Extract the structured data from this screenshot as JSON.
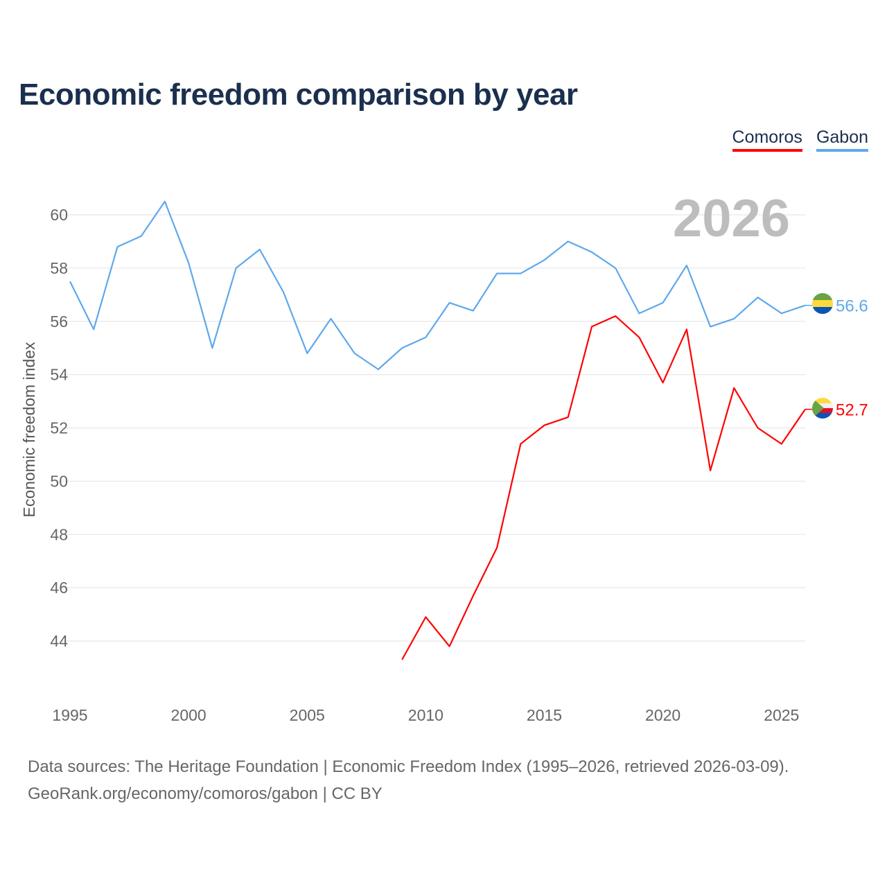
{
  "title": "Economic freedom comparison by year",
  "legend": [
    {
      "name": "Comoros",
      "color": "#ff0000"
    },
    {
      "name": "Gabon",
      "color": "#5ea8ec"
    }
  ],
  "footer": {
    "line1": "Data sources: The Heritage Foundation | Economic Freedom Index (1995–2026, retrieved 2026-03-09).",
    "line2": "GeoRank.org/economy/comoros/gabon | CC BY"
  },
  "chart_data": {
    "type": "line",
    "title": "Economic freedom comparison by year",
    "ylabel": "Economic freedom index",
    "xlabel": "",
    "current_year_label": "2026",
    "xlim": [
      1995,
      2026
    ],
    "ylim": [
      42,
      61
    ],
    "x_ticks": [
      1995,
      2000,
      2005,
      2010,
      2015,
      2020,
      2025
    ],
    "y_ticks": [
      44,
      46,
      48,
      50,
      52,
      54,
      56,
      58,
      60
    ],
    "grid": true,
    "legend_position": "top-right",
    "series": [
      {
        "name": "Gabon",
        "color": "#5ea8ec",
        "end_label": "56.6",
        "flag": "gabon-flag",
        "x": [
          1995,
          1996,
          1997,
          1998,
          1999,
          2000,
          2001,
          2002,
          2003,
          2004,
          2005,
          2006,
          2007,
          2008,
          2009,
          2010,
          2011,
          2012,
          2013,
          2014,
          2015,
          2016,
          2017,
          2018,
          2019,
          2020,
          2021,
          2022,
          2023,
          2024,
          2025,
          2026
        ],
        "values": [
          57.5,
          55.7,
          58.8,
          59.2,
          60.5,
          58.2,
          55.0,
          58.0,
          58.7,
          57.1,
          54.8,
          56.1,
          54.8,
          54.2,
          55.0,
          55.4,
          56.7,
          56.4,
          57.8,
          57.8,
          58.3,
          59.0,
          58.6,
          58.0,
          56.3,
          56.7,
          58.1,
          55.8,
          56.1,
          56.9,
          56.3,
          56.6
        ]
      },
      {
        "name": "Comoros",
        "color": "#ff0000",
        "end_label": "52.7",
        "flag": "comoros-flag",
        "x": [
          2009,
          2010,
          2011,
          2012,
          2013,
          2014,
          2015,
          2016,
          2017,
          2018,
          2019,
          2020,
          2021,
          2022,
          2023,
          2024,
          2025,
          2026
        ],
        "values": [
          43.3,
          44.9,
          43.8,
          45.7,
          47.5,
          51.4,
          52.1,
          52.4,
          55.8,
          56.2,
          55.4,
          53.7,
          55.7,
          50.4,
          53.5,
          52.0,
          51.4,
          52.7
        ]
      }
    ]
  }
}
